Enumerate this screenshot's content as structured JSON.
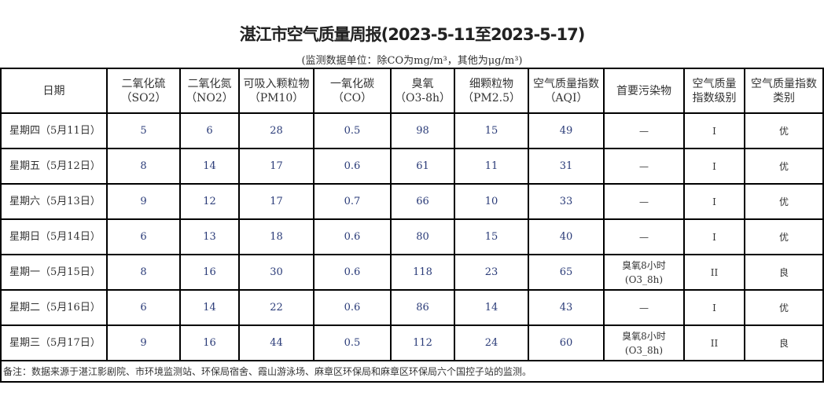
{
  "title": "湛江市空气质量周报(2023-5-11至2023-5-17)",
  "unit_note": "(监测数据单位：除CO为mg/m³，其他为μg/m³)",
  "headers": [
    [
      "日期",
      ""
    ],
    [
      "二氧化硫",
      "（SO2）"
    ],
    [
      "二氧化氮",
      "（NO2）"
    ],
    [
      "可吸入颗粒物",
      "（PM10）"
    ],
    [
      "一氧化碳",
      "（CO）"
    ],
    [
      "臭氧",
      "（O3-8h）"
    ],
    [
      "细颗粒物",
      "（PM2.5）"
    ],
    [
      "空气质量指数",
      "（AQI）"
    ],
    [
      "首要污染物",
      ""
    ],
    [
      "空气质量",
      "指数级别"
    ],
    [
      "空气质量指数",
      "类别"
    ]
  ],
  "rows": [
    [
      "星期四（5月11日）",
      "5",
      "6",
      "28",
      "0.5",
      "98",
      "15",
      "49",
      "—",
      "",
      "I",
      "优"
    ],
    [
      "星期五（5月12日）",
      "8",
      "14",
      "17",
      "0.6",
      "61",
      "11",
      "31",
      "—",
      "",
      "I",
      "优"
    ],
    [
      "星期六（5月13日）",
      "9",
      "12",
      "17",
      "0.7",
      "66",
      "10",
      "33",
      "—",
      "",
      "I",
      "优"
    ],
    [
      "星期日（5月14日）",
      "6",
      "13",
      "18",
      "0.6",
      "80",
      "15",
      "40",
      "—",
      "",
      "I",
      "优"
    ],
    [
      "星期一（5月15日）",
      "8",
      "16",
      "30",
      "0.6",
      "118",
      "23",
      "65",
      "臭氧8小时",
      "(O3_8h)",
      "II",
      "良"
    ],
    [
      "星期二（5月16日）",
      "6",
      "14",
      "22",
      "0.6",
      "86",
      "14",
      "43",
      "—",
      "",
      "I",
      "优"
    ],
    [
      "星期三（5月17日）",
      "9",
      "16",
      "44",
      "0.5",
      "112",
      "24",
      "60",
      "臭氧8小时",
      "(O3_8h)",
      "II",
      "良"
    ]
  ],
  "footnote": "备注：数据来源于湛江影剧院、市环境监测站、环保局宿舍、霞山游泳场、麻章区环保局和麻章区环保局六个国控子站的监测。"
}
